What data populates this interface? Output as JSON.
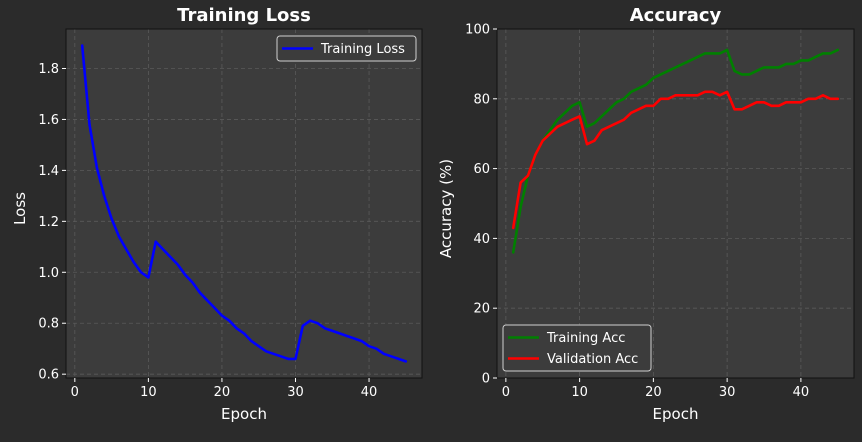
{
  "figure": {
    "background": "#2b2b2b",
    "axes_background": "#3c3c3c",
    "text_color": "#ffffff",
    "grid_color": "#5a5a5a"
  },
  "chart_data": [
    {
      "type": "line",
      "title": "Training Loss",
      "xlabel": "Epoch",
      "ylabel": "Loss",
      "xlim": [
        -1.2,
        47.2
      ],
      "ylim": [
        0.585,
        1.955
      ],
      "xticks": [
        0,
        10,
        20,
        30,
        40
      ],
      "yticks": [
        0.6,
        0.8,
        1.0,
        1.2,
        1.4,
        1.6,
        1.8
      ],
      "xtick_labels": [
        "0",
        "10",
        "20",
        "30",
        "40"
      ],
      "ytick_labels": [
        "0.6",
        "0.8",
        "1.0",
        "1.2",
        "1.4",
        "1.6",
        "1.8"
      ],
      "grid": true,
      "legend_position": "top-right",
      "x": [
        1,
        2,
        3,
        4,
        5,
        6,
        7,
        8,
        9,
        10,
        11,
        12,
        13,
        14,
        15,
        16,
        17,
        18,
        19,
        20,
        21,
        22,
        23,
        24,
        25,
        26,
        27,
        28,
        29,
        30,
        31,
        32,
        33,
        34,
        35,
        36,
        37,
        38,
        39,
        40,
        41,
        42,
        43,
        44,
        45
      ],
      "series": [
        {
          "name": "Training Loss",
          "color": "#0000ff",
          "values": [
            1.89,
            1.58,
            1.41,
            1.3,
            1.21,
            1.14,
            1.09,
            1.04,
            1.0,
            0.98,
            1.12,
            1.09,
            1.06,
            1.03,
            0.99,
            0.96,
            0.92,
            0.89,
            0.86,
            0.83,
            0.81,
            0.78,
            0.76,
            0.73,
            0.71,
            0.69,
            0.68,
            0.67,
            0.66,
            0.66,
            0.79,
            0.81,
            0.8,
            0.78,
            0.77,
            0.76,
            0.75,
            0.74,
            0.73,
            0.71,
            0.7,
            0.68,
            0.67,
            0.66,
            0.65
          ]
        }
      ]
    },
    {
      "type": "line",
      "title": "Accuracy",
      "xlabel": "Epoch",
      "ylabel": "Accuracy (%)",
      "xlim": [
        -1.2,
        47.2
      ],
      "ylim": [
        0,
        100
      ],
      "xticks": [
        0,
        10,
        20,
        30,
        40
      ],
      "yticks": [
        0,
        20,
        40,
        60,
        80,
        100
      ],
      "xtick_labels": [
        "0",
        "10",
        "20",
        "30",
        "40"
      ],
      "ytick_labels": [
        "0",
        "20",
        "40",
        "60",
        "80",
        "100"
      ],
      "grid": true,
      "legend_position": "bottom-left",
      "x": [
        1,
        2,
        3,
        4,
        5,
        6,
        7,
        8,
        9,
        10,
        11,
        12,
        13,
        14,
        15,
        16,
        17,
        18,
        19,
        20,
        21,
        22,
        23,
        24,
        25,
        26,
        27,
        28,
        29,
        30,
        31,
        32,
        33,
        34,
        35,
        36,
        37,
        38,
        39,
        40,
        41,
        42,
        43,
        44,
        45
      ],
      "series": [
        {
          "name": "Training Acc",
          "color": "#008000",
          "values": [
            36,
            49,
            58,
            64,
            68,
            71,
            74,
            76,
            78,
            79,
            72,
            73,
            75,
            77,
            79,
            80,
            82,
            83,
            84,
            86,
            87,
            88,
            89,
            90,
            91,
            92,
            93,
            93,
            93,
            94,
            88,
            87,
            87,
            88,
            89,
            89,
            89,
            90,
            90,
            91,
            91,
            92,
            93,
            93,
            94
          ]
        },
        {
          "name": "Validation Acc",
          "color": "#ff0000",
          "values": [
            43,
            56,
            58,
            64,
            68,
            70,
            72,
            73,
            74,
            75,
            67,
            68,
            71,
            72,
            73,
            74,
            76,
            77,
            78,
            78,
            80,
            80,
            81,
            81,
            81,
            81,
            82,
            82,
            81,
            82,
            77,
            77,
            78,
            79,
            79,
            78,
            78,
            79,
            79,
            79,
            80,
            80,
            81,
            80,
            80
          ]
        }
      ]
    }
  ]
}
